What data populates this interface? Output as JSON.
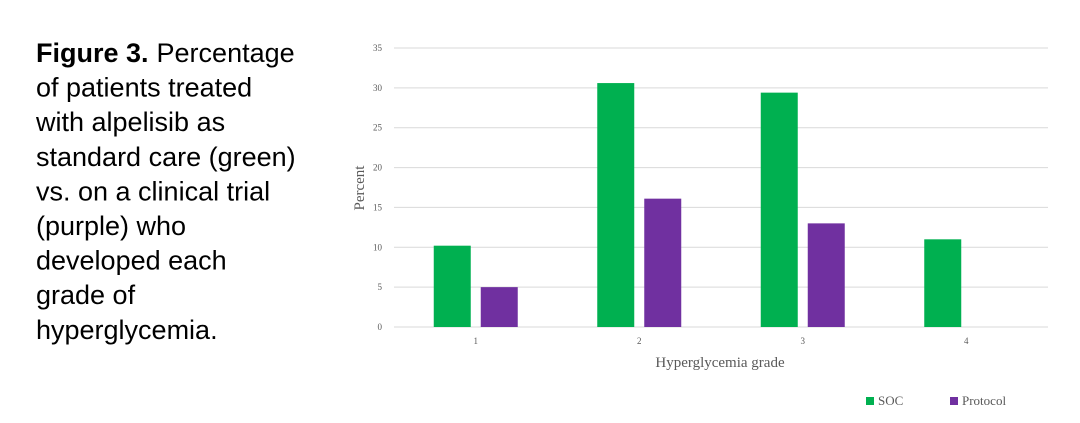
{
  "caption": {
    "label": "Figure 3.",
    "lines": [
      "Percentage",
      "of patients treated",
      "with alpelisib as",
      "standard care (green)",
      "vs. on a clinical trial",
      "(purple) who",
      "developed each",
      "grade of",
      "hyperglycemia."
    ]
  },
  "chart_data": {
    "type": "bar",
    "x_label": "Hyperglycemia grade",
    "y_label": "Percent",
    "categories": [
      "1",
      "2",
      "3",
      "4"
    ],
    "series": [
      {
        "name": "SOC",
        "color": "#00b050",
        "values": [
          10.2,
          30.6,
          29.4,
          11
        ]
      },
      {
        "name": "Protocol",
        "color": "#7030a0",
        "values": [
          5,
          16.1,
          13,
          null
        ]
      }
    ],
    "ylim": [
      0,
      35
    ],
    "yticks": [
      0,
      5,
      10,
      15,
      20,
      25,
      30,
      35
    ],
    "grid": true,
    "legend": "bottom-right"
  }
}
